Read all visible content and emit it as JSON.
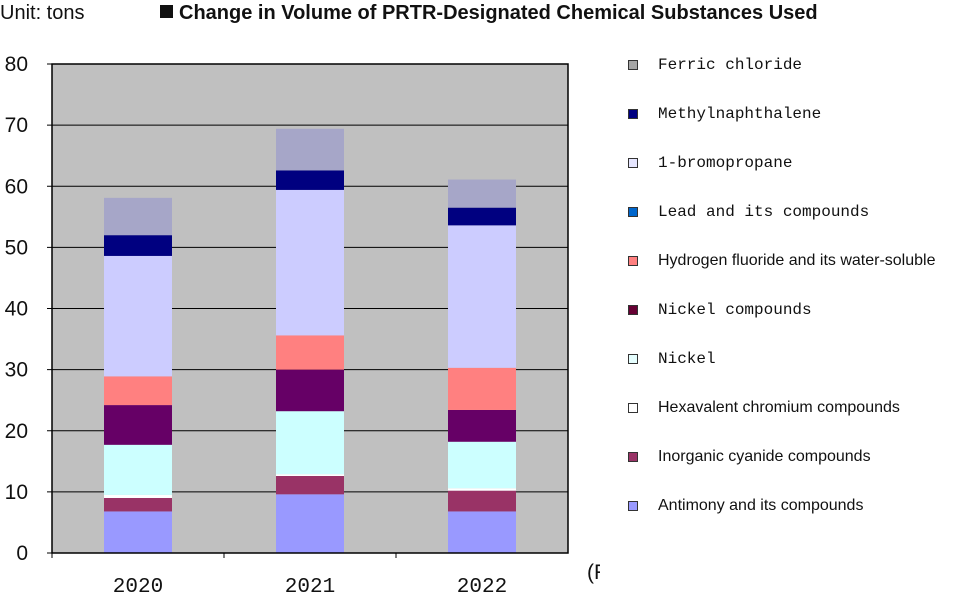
{
  "unit_label": "Unit: tons",
  "title": "Change in Volume of PRTR-Designated Chemical Substances Used",
  "chart_data": {
    "type": "bar",
    "stacked": true,
    "title": "Change in Volume of PRTR-Designated Chemical Substances Used",
    "xlabel": "(FY)",
    "ylabel": "Unit: tons",
    "ylim": [
      0,
      80
    ],
    "yticks": [
      0,
      10,
      20,
      30,
      40,
      50,
      60,
      70,
      80
    ],
    "categories": [
      "2020",
      "2021",
      "2022"
    ],
    "grid": true,
    "legend_position": "right",
    "series": [
      {
        "name": "Antimony and its compounds",
        "color": "#9999ff",
        "values": [
          6.8,
          9.6,
          6.8
        ]
      },
      {
        "name": "Inorganic cyanide compounds",
        "color": "#993366",
        "values": [
          2.2,
          3.0,
          3.4
        ]
      },
      {
        "name": "Hexavalent chromium compounds",
        "color": "#ffffff",
        "values": [
          0.5,
          0.3,
          0.4
        ]
      },
      {
        "name": "Nickel",
        "color": "#ccffff",
        "values": [
          8.2,
          10.3,
          7.6
        ]
      },
      {
        "name": "Nickel compounds",
        "color": "#660066",
        "values": [
          6.5,
          6.8,
          5.2
        ]
      },
      {
        "name": "Hydrogen fluoride and its water-soluble",
        "color": "#ff8080",
        "values": [
          4.7,
          5.6,
          6.9
        ]
      },
      {
        "name": "Lead and its compounds",
        "color": "#0066cc",
        "values": [
          0.0,
          0.0,
          0.0
        ]
      },
      {
        "name": "1-bromopropane",
        "color": "#ccccff",
        "values": [
          19.7,
          23.8,
          23.3
        ]
      },
      {
        "name": "Methylnaphthalene",
        "color": "#000080",
        "values": [
          3.4,
          3.2,
          2.9
        ]
      },
      {
        "name": "Ferric chloride",
        "color": "#a6a6c8",
        "values": [
          6.1,
          6.8,
          4.6
        ]
      }
    ],
    "legend_order": [
      "Ferric chloride",
      "Methylnaphthalene",
      "1-bromopropane",
      "Lead and its compounds",
      "Hydrogen fluoride and its water-soluble",
      "Nickel compounds",
      "Nickel",
      "Hexavalent chromium compounds",
      "Inorganic cyanide compounds",
      "Antimony and its compounds"
    ],
    "legend_markers": {
      "Ferric chloride": "#a6a6a6",
      "Methylnaphthalene": "#000080",
      "1-bromopropane": "#e6e6ff",
      "Lead and its compounds": "#0066cc",
      "Hydrogen fluoride and its water-soluble": "#ff8080",
      "Nickel compounds": "#660033",
      "Nickel": "#e6ffff",
      "Hexavalent chromium compounds": "#ffffff",
      "Inorganic cyanide compounds": "#993366",
      "Antimony and its compounds": "#9999ff"
    }
  }
}
